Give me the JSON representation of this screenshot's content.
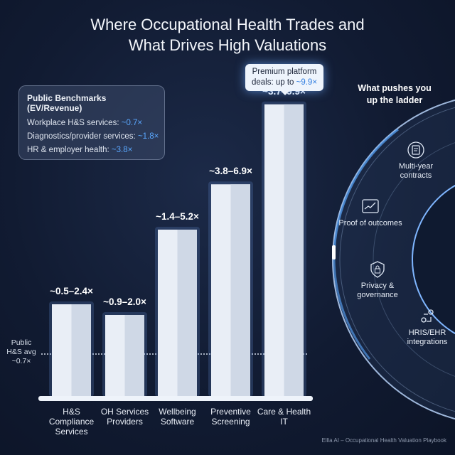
{
  "title_line1": "Where Occupational Health Trades and",
  "title_line2": "What Drives High Valuations",
  "benchmarks": {
    "heading": "Public Benchmarks (EV/Revenue)",
    "items": [
      {
        "label": "Workplace H&S services:",
        "value": "~0.7×"
      },
      {
        "label": "Diagnostics/provider services:",
        "value": "~1.8×"
      },
      {
        "label": "HR & employer health:",
        "value": "~3.8×"
      }
    ]
  },
  "callout": {
    "text": "Premium platform deals: up to",
    "value": "~9.9×"
  },
  "drivers": {
    "heading": "What pushes you up the ladder",
    "items": [
      {
        "label": "Multi-year contracts",
        "icon": "contract-renewal-icon"
      },
      {
        "label": "Proof of outcomes",
        "icon": "chart-dashboard-icon"
      },
      {
        "label": "Privacy & governance",
        "icon": "shield-lock-icon"
      },
      {
        "label": "HRIS/EHR integrations",
        "icon": "integration-pins-icon"
      }
    ]
  },
  "chart_data": {
    "type": "bar",
    "categories": [
      "H&S Compliance Services",
      "OH Services Providers",
      "Wellbeing Software",
      "Preventive Screening",
      "Care & Health IT"
    ],
    "ranges": [
      [
        0.5,
        2.4
      ],
      [
        0.9,
        2.0
      ],
      [
        1.4,
        5.2
      ],
      [
        3.8,
        6.9
      ],
      [
        3.7,
        9.9
      ]
    ],
    "range_labels": [
      "~0.5–2.4×",
      "~0.9–2.0×",
      "~1.4–5.2×",
      "~3.8–6.9×",
      "~3.7–9.9×"
    ],
    "reference_line": {
      "label": "Public H&S avg ~0.7×",
      "value": 0.7
    },
    "grid": false
  },
  "colors": {
    "background": "#111b32",
    "accent": "#5aa8ff",
    "bar": "#e9eef6"
  },
  "footer": "Ellla AI – Occupational Health Valuation Playbook"
}
